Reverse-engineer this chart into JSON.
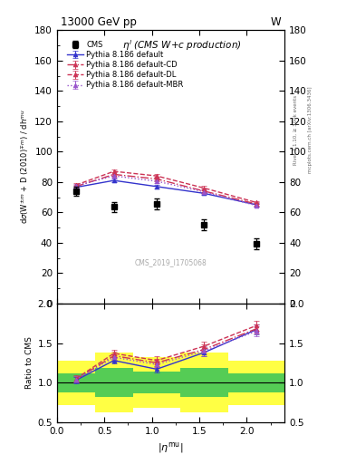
{
  "title_top": "13000 GeV pp",
  "title_right": "W",
  "plot_label": "$\\eta^l$ (CMS W+c production)",
  "watermark": "CMS_2019_I1705068",
  "rivet_label": "Rivet 3.1.10, ≥ 300k events",
  "mcplots_label": "mcplots.cern.ch [arXiv:1306.3436]",
  "x_label": "$|\\eta^{\\mathrm{mu}}|$",
  "y_label_main": "d$\\sigma$(W$^{\\pm m}$ + D (2010)$^{\\mp m}$) / d$h^{mu}$",
  "y_label_ratio": "Ratio to CMS",
  "x_values": [
    0.2,
    0.6,
    1.05,
    1.55,
    2.1
  ],
  "x_edges": [
    0.0,
    0.4,
    0.8,
    1.3,
    1.8,
    2.4
  ],
  "cms_y": [
    74.0,
    63.5,
    65.5,
    52.0,
    39.5
  ],
  "cms_yerr": [
    3.0,
    3.5,
    3.5,
    3.5,
    3.5
  ],
  "pythia_default_y": [
    76.5,
    81.0,
    77.0,
    72.5,
    65.0
  ],
  "pythia_default_yerr": [
    1.0,
    1.0,
    1.0,
    1.0,
    1.0
  ],
  "pythia_cd_y": [
    77.0,
    85.0,
    82.0,
    74.0,
    65.5
  ],
  "pythia_cd_yerr": [
    1.0,
    1.5,
    1.5,
    1.5,
    1.0
  ],
  "pythia_dl_y": [
    78.0,
    87.0,
    84.0,
    76.0,
    66.5
  ],
  "pythia_dl_yerr": [
    1.0,
    1.5,
    1.5,
    1.5,
    1.0
  ],
  "pythia_mbr_y": [
    77.5,
    84.0,
    80.5,
    73.5,
    64.5
  ],
  "pythia_mbr_yerr": [
    1.0,
    1.5,
    1.5,
    1.5,
    1.0
  ],
  "ratio_default_y": [
    1.03,
    1.28,
    1.17,
    1.38,
    1.67
  ],
  "ratio_default_yerr": [
    0.04,
    0.04,
    0.04,
    0.05,
    0.06
  ],
  "ratio_cd_y": [
    1.04,
    1.34,
    1.25,
    1.42,
    1.68
  ],
  "ratio_cd_yerr": [
    0.04,
    0.05,
    0.05,
    0.06,
    0.06
  ],
  "ratio_dl_y": [
    1.05,
    1.37,
    1.28,
    1.46,
    1.72
  ],
  "ratio_dl_yerr": [
    0.04,
    0.05,
    0.05,
    0.06,
    0.06
  ],
  "ratio_mbr_y": [
    1.04,
    1.32,
    1.23,
    1.4,
    1.65
  ],
  "ratio_mbr_yerr": [
    0.04,
    0.05,
    0.05,
    0.06,
    0.06
  ],
  "green_band_lo": [
    0.88,
    0.82,
    0.86,
    0.82,
    0.88
  ],
  "green_band_hi": [
    1.12,
    1.18,
    1.14,
    1.18,
    1.12
  ],
  "yellow_band_lo": [
    0.72,
    0.62,
    0.68,
    0.62,
    0.72
  ],
  "yellow_band_hi": [
    1.28,
    1.38,
    1.32,
    1.38,
    1.28
  ],
  "color_default": "#3333cc",
  "color_cd": "#cc3355",
  "color_dl": "#cc3355",
  "color_mbr": "#9955cc",
  "ylim_main": [
    0,
    180
  ],
  "ylim_ratio": [
    0.5,
    2.0
  ],
  "xlim": [
    0,
    2.4
  ],
  "main_yticks": [
    0,
    20,
    40,
    60,
    80,
    100,
    120,
    140,
    160,
    180
  ],
  "ratio_yticks": [
    0.5,
    1.0,
    1.5,
    2.0
  ],
  "xticks": [
    0.0,
    0.5,
    1.0,
    1.5,
    2.0
  ]
}
